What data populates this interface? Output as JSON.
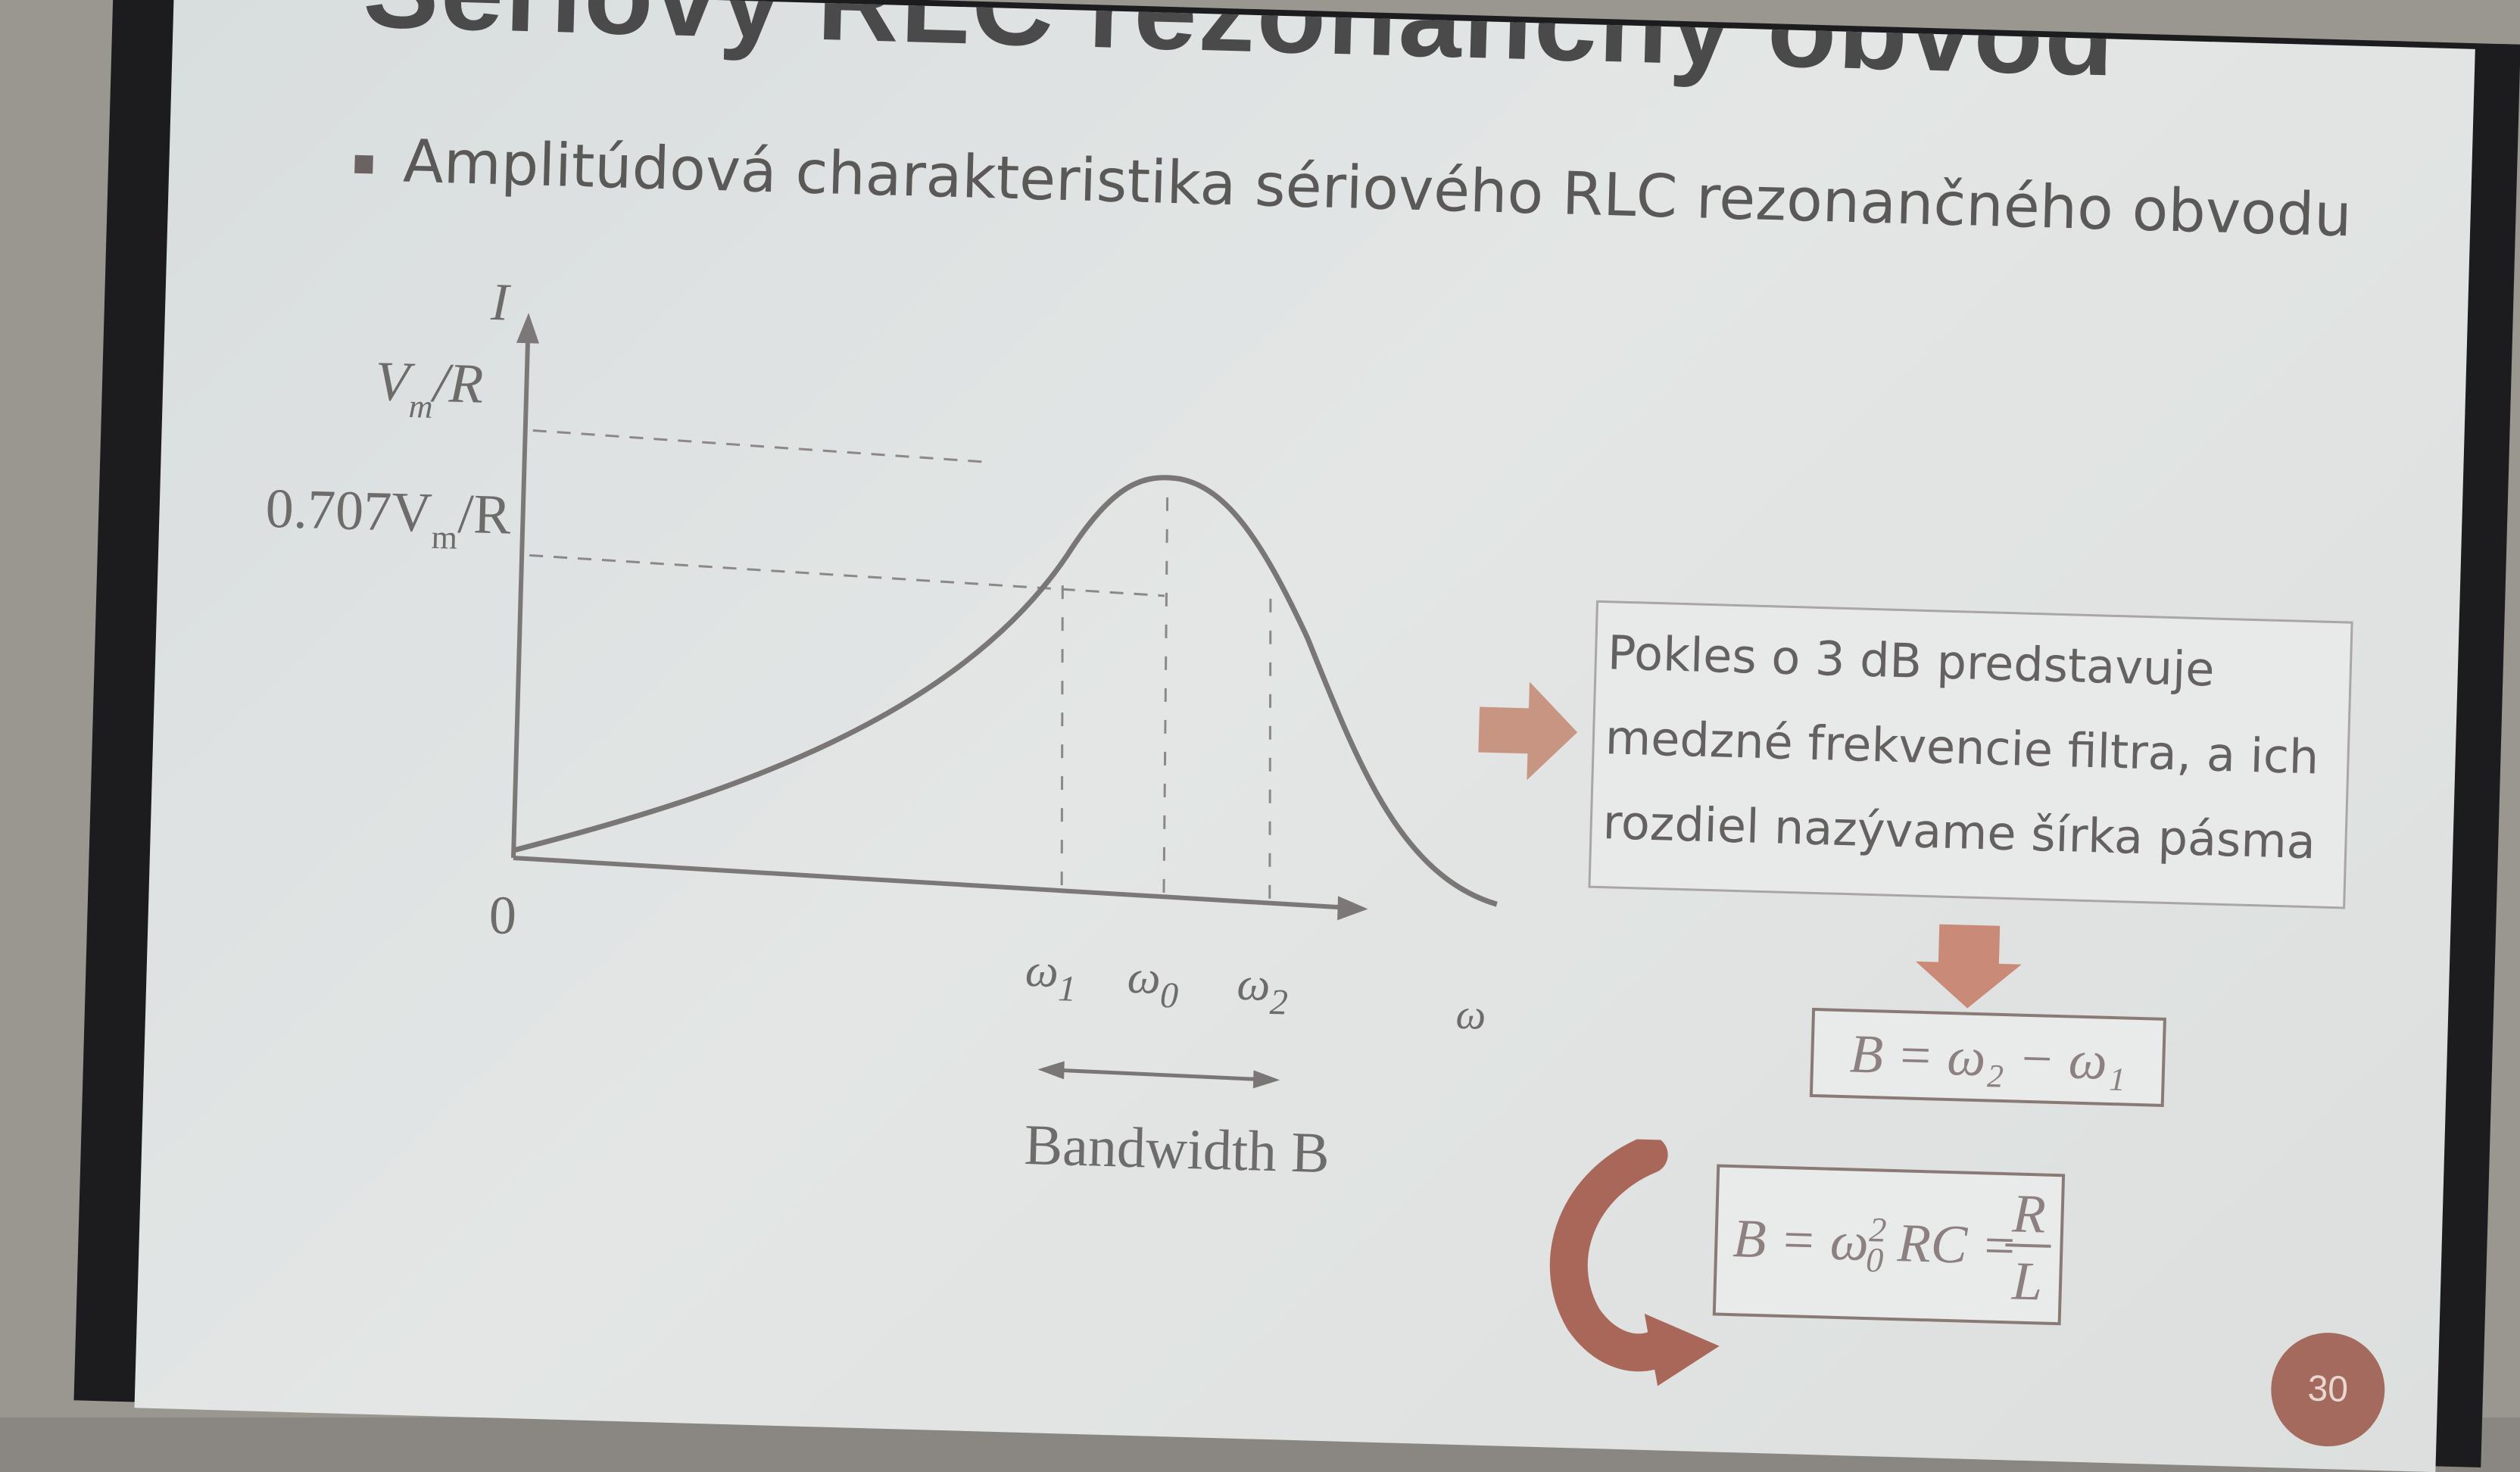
{
  "slide": {
    "title": "Sériový RLC rezonančný obvod",
    "bullet": "Amplitúdová charakteristika sériového RLC rezonančného obvodu",
    "page_number": "30",
    "colors": {
      "accent": "#a56a5e",
      "text": "#5b5858",
      "slide_bg": "#e0e3e2"
    }
  },
  "graph": {
    "y_axis_label": "I",
    "y_tick_max": "V",
    "y_tick_max_sub": "m",
    "y_tick_max_tail": "/R",
    "y_tick_707_prefix": "0.707V",
    "y_tick_707_sub": "m",
    "y_tick_707_tail": "/R",
    "origin_label": "0",
    "x_axis_label": "ω",
    "omega1": "ω",
    "omega1_sub": "1",
    "omega0": "ω",
    "omega0_sub": "0",
    "omega2": "ω",
    "omega2_sub": "2",
    "bandwidth_label": "Bandwidth B"
  },
  "note": {
    "lines": [
      "Pokles o 3 dB predstavuje",
      "medzné frekvencie filtra, a ich",
      "rozdiel nazývame šírka pásma"
    ]
  },
  "formulas": {
    "bandwidth_difference": "B = ω₂ − ω₁",
    "bandwidth_rc_prefix": "B = ω",
    "bandwidth_rc_sup": "2",
    "bandwidth_rc_sub": "0",
    "bandwidth_rc_mid": "RC =",
    "bandwidth_rc_num": "R",
    "bandwidth_rc_den": "L"
  }
}
